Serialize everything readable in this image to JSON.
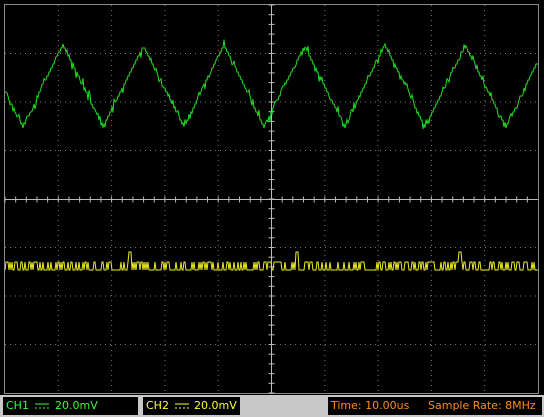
{
  "status_bar": {
    "ch1_label": "CH1",
    "ch1_scale": "20.0mV",
    "ch2_label": "CH2",
    "ch2_scale": "20.0mV",
    "time_base": "Time: 10.00us",
    "sample_rate": "Sample Rate: 8MHz"
  }
}
